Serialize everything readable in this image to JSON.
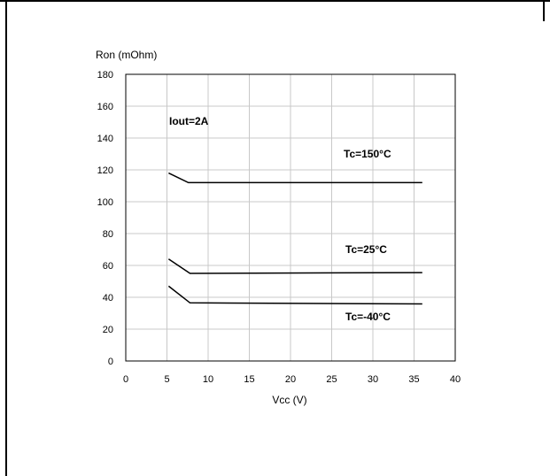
{
  "chart_data": {
    "type": "line",
    "xlabel": "Vcc (V)",
    "ylabel": "Ron (mOhm)",
    "xlim": [
      0,
      40
    ],
    "ylim": [
      0,
      180
    ],
    "xticks": [
      0,
      5,
      10,
      15,
      20,
      25,
      30,
      35,
      40
    ],
    "yticks": [
      0,
      20,
      40,
      60,
      80,
      100,
      120,
      140,
      160,
      180
    ],
    "grid": true,
    "annotations": {
      "condition": "Iout=2A"
    },
    "series": [
      {
        "name": "Tc=150°C",
        "x": [
          5.2,
          7.6,
          36
        ],
        "y": [
          118,
          112,
          112
        ]
      },
      {
        "name": "Tc=25°C",
        "x": [
          5.2,
          7.8,
          36
        ],
        "y": [
          64,
          55,
          55.5
        ]
      },
      {
        "name": "Tc=-40°C",
        "x": [
          5.2,
          7.8,
          36
        ],
        "y": [
          47,
          36.5,
          35.8
        ]
      }
    ]
  }
}
